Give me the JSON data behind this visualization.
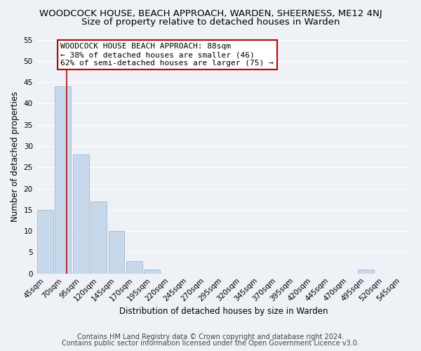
{
  "title": "WOODCOCK HOUSE, BEACH APPROACH, WARDEN, SHEERNESS, ME12 4NJ",
  "subtitle": "Size of property relative to detached houses in Warden",
  "xlabel": "Distribution of detached houses by size in Warden",
  "ylabel": "Number of detached properties",
  "bar_labels": [
    "45sqm",
    "70sqm",
    "95sqm",
    "120sqm",
    "145sqm",
    "170sqm",
    "195sqm",
    "220sqm",
    "245sqm",
    "270sqm",
    "295sqm",
    "320sqm",
    "345sqm",
    "370sqm",
    "395sqm",
    "420sqm",
    "445sqm",
    "470sqm",
    "495sqm",
    "520sqm",
    "545sqm"
  ],
  "bar_values": [
    15,
    44,
    28,
    17,
    10,
    3,
    1,
    0,
    0,
    0,
    0,
    0,
    0,
    0,
    0,
    0,
    0,
    0,
    1,
    0,
    0
  ],
  "bar_color": "#c8d8eb",
  "bar_edge_color": "#a8c0d8",
  "ylim": [
    0,
    55
  ],
  "yticks": [
    0,
    5,
    10,
    15,
    20,
    25,
    30,
    35,
    40,
    45,
    50,
    55
  ],
  "annotation_line1": "WOODCOCK HOUSE BEACH APPROACH: 88sqm",
  "annotation_line2": "← 38% of detached houses are smaller (46)",
  "annotation_line3": "62% of semi-detached houses are larger (75) →",
  "annotation_box_color": "#ffffff",
  "annotation_box_edge": "#cc0000",
  "vline_color": "#cc0000",
  "footer1": "Contains HM Land Registry data © Crown copyright and database right 2024.",
  "footer2": "Contains public sector information licensed under the Open Government Licence v3.0.",
  "bg_color": "#eef2f7",
  "grid_color": "#ffffff",
  "title_fontsize": 9.5,
  "subtitle_fontsize": 9.5,
  "axis_label_fontsize": 8.5,
  "tick_fontsize": 7.5,
  "annotation_fontsize": 8.0,
  "footer_fontsize": 7.0
}
